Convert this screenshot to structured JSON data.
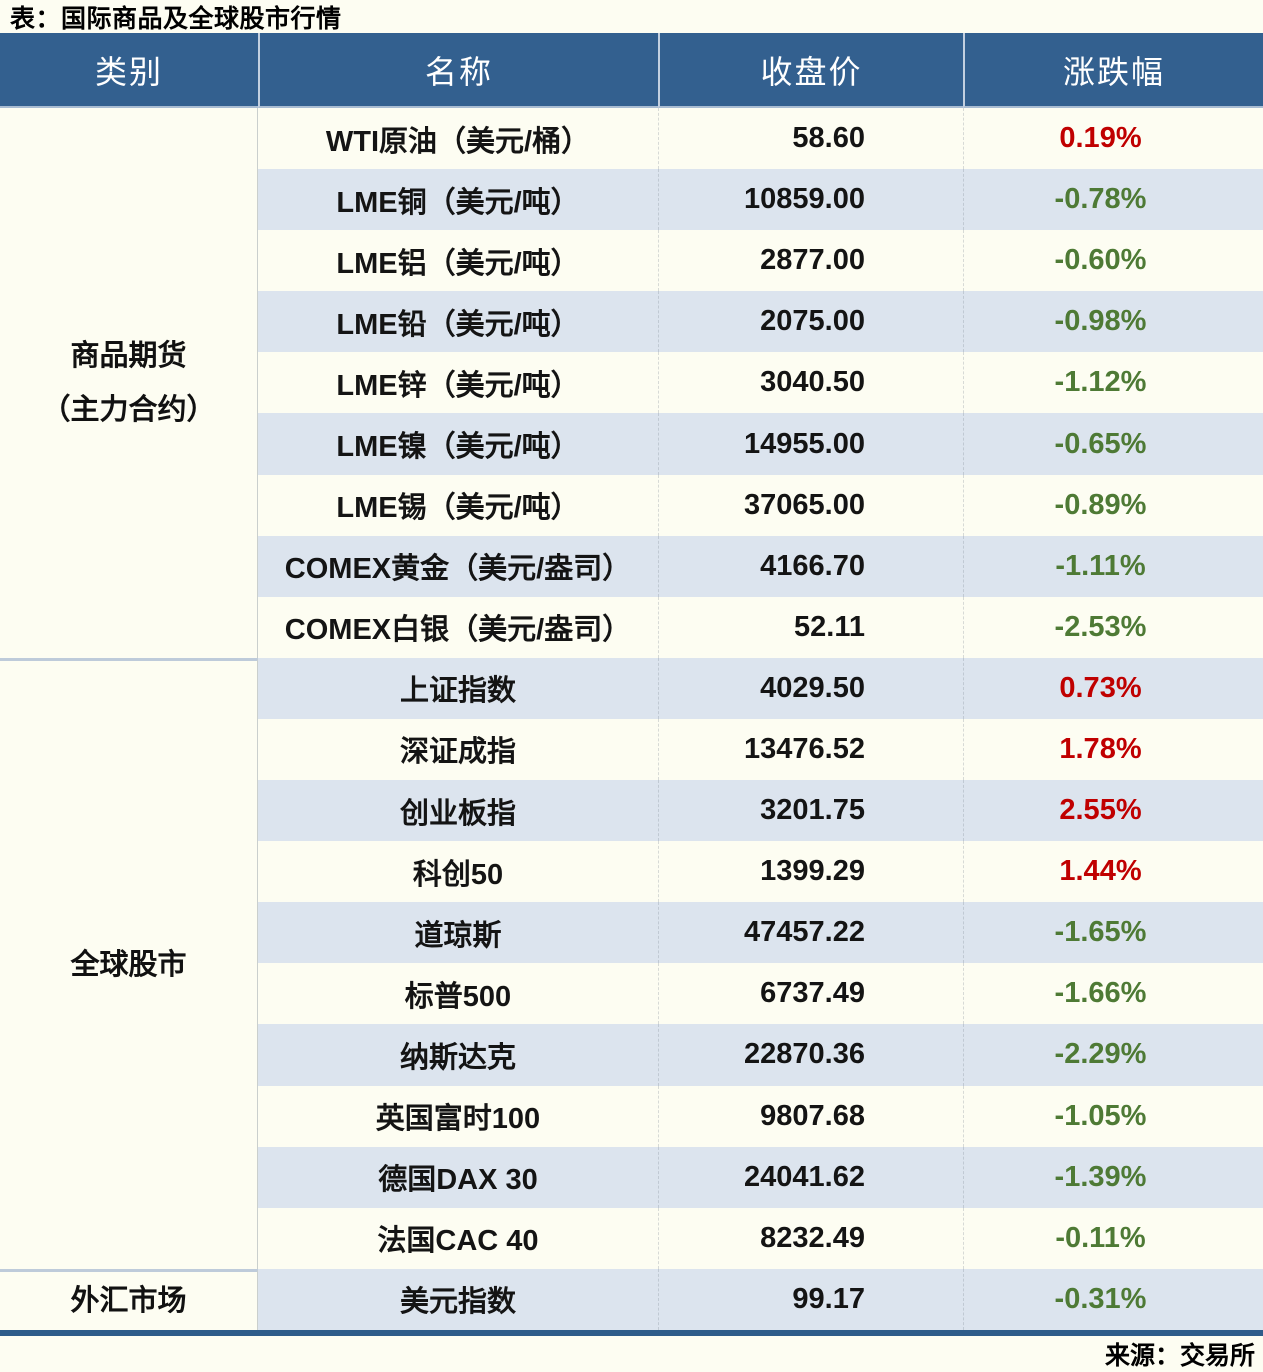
{
  "colors": {
    "page_bg": "#FDFDF2",
    "header_bg": "#33608F",
    "row_alt_bg": "#DCE4EE",
    "up": "#C00000",
    "down": "#4E7A35",
    "bottom_border": "#2E5C8A",
    "group_sep": "#BECBDA"
  },
  "source": "来源：交易所",
  "chart_data": {
    "type": "table",
    "title": "表：国际商品及全球股市行情",
    "columns": [
      "类别",
      "名称",
      "收盘价",
      "涨跌幅"
    ],
    "legend_note": "red = up, green = down (CN market convention)",
    "groups": [
      {
        "category": "商品期货（主力合约）",
        "category_lines": [
          "商品期货",
          "（主力合约）"
        ],
        "rows": [
          {
            "name": "WTI原油（美元/桶）",
            "close": "58.60",
            "change": "0.19%"
          },
          {
            "name": "LME铜（美元/吨）",
            "close": "10859.00",
            "change": "-0.78%"
          },
          {
            "name": "LME铝（美元/吨）",
            "close": "2877.00",
            "change": "-0.60%"
          },
          {
            "name": "LME铅（美元/吨）",
            "close": "2075.00",
            "change": "-0.98%"
          },
          {
            "name": "LME锌（美元/吨）",
            "close": "3040.50",
            "change": "-1.12%"
          },
          {
            "name": "LME镍（美元/吨）",
            "close": "14955.00",
            "change": "-0.65%"
          },
          {
            "name": "LME锡（美元/吨）",
            "close": "37065.00",
            "change": "-0.89%"
          },
          {
            "name": "COMEX黄金（美元/盎司）",
            "close": "4166.70",
            "change": "-1.11%"
          },
          {
            "name": "COMEX白银（美元/盎司）",
            "close": "52.11",
            "change": "-2.53%"
          }
        ]
      },
      {
        "category": "全球股市",
        "category_lines": [
          "全球股市"
        ],
        "rows": [
          {
            "name": "上证指数",
            "close": "4029.50",
            "change": "0.73%"
          },
          {
            "name": "深证成指",
            "close": "13476.52",
            "change": "1.78%"
          },
          {
            "name": "创业板指",
            "close": "3201.75",
            "change": "2.55%"
          },
          {
            "name": "科创50",
            "close": "1399.29",
            "change": "1.44%"
          },
          {
            "name": "道琼斯",
            "close": "47457.22",
            "change": "-1.65%"
          },
          {
            "name": "标普500",
            "close": "6737.49",
            "change": "-1.66%"
          },
          {
            "name": "纳斯达克",
            "close": "22870.36",
            "change": "-2.29%"
          },
          {
            "name": "英国富时100",
            "close": "9807.68",
            "change": "-1.05%"
          },
          {
            "name": "德国DAX 30",
            "close": "24041.62",
            "change": "-1.39%"
          },
          {
            "name": "法国CAC 40",
            "close": "8232.49",
            "change": "-0.11%"
          }
        ]
      },
      {
        "category": "外汇市场",
        "category_lines": [
          "外汇市场"
        ],
        "rows": [
          {
            "name": "美元指数",
            "close": "99.17",
            "change": "-0.31%"
          }
        ]
      }
    ]
  }
}
